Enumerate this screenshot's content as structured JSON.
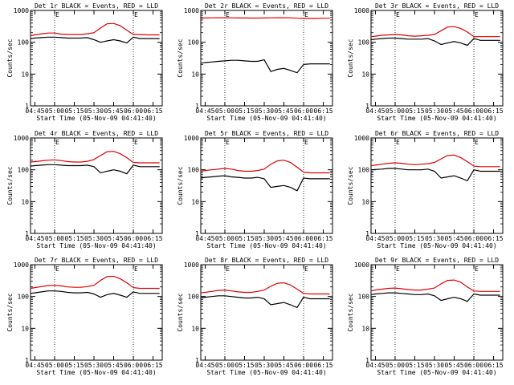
{
  "colors": {
    "events": "#000000",
    "lld": "#e00000",
    "axes": "#000000"
  },
  "common": {
    "xlabel": "Start Time (05-Nov-09 04:41:40)",
    "ylabel": "Counts/sec",
    "xticks": [
      "04:45",
      "05:00",
      "05:15",
      "05:30",
      "05:45",
      "06:00",
      "06:15"
    ],
    "yticks": [
      "1",
      "10",
      "100",
      "1000"
    ],
    "marker_label": "E",
    "markers": [
      "05:00",
      "06:00"
    ]
  },
  "chart_data": [
    {
      "type": "line",
      "title": "Det 1r BLACK = Events, RED = LLD",
      "yscale": "log",
      "ylim": [
        1,
        1000
      ],
      "xlim": [
        "04:41:40",
        "06:22"
      ],
      "grid": false,
      "x": [
        "04:41",
        "04:45",
        "04:50",
        "04:55",
        "05:00",
        "05:05",
        "05:10",
        "05:15",
        "05:20",
        "05:25",
        "05:30",
        "05:35",
        "05:40",
        "05:45",
        "05:50",
        "05:55",
        "06:00",
        "06:05",
        "06:10",
        "06:15",
        "06:20"
      ],
      "series": [
        {
          "name": "LLD",
          "values": [
            160,
            170,
            185,
            195,
            195,
            180,
            175,
            175,
            175,
            185,
            200,
            280,
            380,
            390,
            330,
            240,
            175,
            175,
            170,
            170,
            170
          ]
        },
        {
          "name": "Events",
          "values": [
            130,
            135,
            140,
            145,
            145,
            140,
            135,
            135,
            135,
            140,
            120,
            100,
            110,
            120,
            110,
            95,
            145,
            130,
            130,
            130,
            130
          ]
        }
      ]
    },
    {
      "type": "line",
      "title": "Det 2r BLACK = Events, RED = LLD",
      "yscale": "log",
      "ylim": [
        1,
        1000
      ],
      "xlim": [
        "04:41:40",
        "06:22"
      ],
      "grid": false,
      "x": [
        "04:41",
        "04:45",
        "04:50",
        "04:55",
        "05:00",
        "05:05",
        "05:10",
        "05:15",
        "05:20",
        "05:25",
        "05:30",
        "05:35",
        "05:40",
        "05:45",
        "05:50",
        "05:55",
        "06:00",
        "06:05",
        "06:10",
        "06:15",
        "06:20"
      ],
      "series": [
        {
          "name": "LLD",
          "values": [
            570,
            580,
            585,
            590,
            590,
            585,
            580,
            580,
            575,
            575,
            580,
            585,
            590,
            590,
            585,
            570,
            560,
            560,
            560,
            570,
            570
          ]
        },
        {
          "name": "Events",
          "values": [
            22,
            23,
            24,
            25,
            26,
            27,
            27,
            26,
            25,
            25,
            28,
            12,
            14,
            15,
            13,
            11,
            20,
            21,
            21,
            21,
            21
          ]
        }
      ]
    },
    {
      "type": "line",
      "title": "Det 3r BLACK = Events, RED = LLD",
      "yscale": "log",
      "ylim": [
        1,
        1000
      ],
      "xlim": [
        "04:41:40",
        "06:22"
      ],
      "grid": false,
      "x": [
        "04:41",
        "04:45",
        "04:50",
        "04:55",
        "05:00",
        "05:05",
        "05:10",
        "05:15",
        "05:20",
        "05:25",
        "05:30",
        "05:35",
        "05:40",
        "05:45",
        "05:50",
        "05:55",
        "06:00",
        "06:05",
        "06:10",
        "06:15",
        "06:20"
      ],
      "series": [
        {
          "name": "LLD",
          "values": [
            150,
            155,
            165,
            170,
            175,
            170,
            160,
            155,
            160,
            165,
            175,
            230,
            300,
            310,
            270,
            210,
            150,
            150,
            150,
            150,
            150
          ]
        },
        {
          "name": "Events",
          "values": [
            120,
            125,
            130,
            135,
            135,
            130,
            125,
            125,
            125,
            130,
            110,
            85,
            95,
            105,
            95,
            80,
            130,
            115,
            115,
            115,
            115
          ]
        }
      ]
    },
    {
      "type": "line",
      "title": "Det 4r BLACK = Events, RED = LLD",
      "yscale": "log",
      "ylim": [
        1,
        1000
      ],
      "xlim": [
        "04:41:40",
        "06:22"
      ],
      "grid": false,
      "x": [
        "04:41",
        "04:45",
        "04:50",
        "04:55",
        "05:00",
        "05:05",
        "05:10",
        "05:15",
        "05:20",
        "05:25",
        "05:30",
        "05:35",
        "05:40",
        "05:45",
        "05:50",
        "05:55",
        "06:00",
        "06:05",
        "06:10",
        "06:15",
        "06:20"
      ],
      "series": [
        {
          "name": "LLD",
          "values": [
            175,
            180,
            190,
            200,
            205,
            195,
            180,
            175,
            175,
            185,
            210,
            280,
            370,
            380,
            320,
            240,
            170,
            165,
            165,
            165,
            165
          ]
        },
        {
          "name": "Events",
          "values": [
            130,
            135,
            140,
            145,
            145,
            140,
            135,
            135,
            135,
            140,
            125,
            80,
            90,
            100,
            90,
            75,
            140,
            125,
            125,
            125,
            125
          ]
        }
      ]
    },
    {
      "type": "line",
      "title": "Det 5r BLACK = Events, RED = LLD",
      "yscale": "log",
      "ylim": [
        1,
        1000
      ],
      "xlim": [
        "04:41:40",
        "06:22"
      ],
      "grid": false,
      "x": [
        "04:41",
        "04:45",
        "04:50",
        "04:55",
        "05:00",
        "05:05",
        "05:10",
        "05:15",
        "05:20",
        "05:25",
        "05:30",
        "05:35",
        "05:40",
        "05:45",
        "05:50",
        "05:55",
        "06:00",
        "06:05",
        "06:10",
        "06:15",
        "06:20"
      ],
      "series": [
        {
          "name": "LLD",
          "values": [
            90,
            95,
            100,
            105,
            110,
            105,
            95,
            90,
            90,
            95,
            105,
            150,
            190,
            200,
            170,
            120,
            85,
            80,
            80,
            80,
            80
          ]
        },
        {
          "name": "Events",
          "values": [
            55,
            58,
            60,
            63,
            65,
            60,
            58,
            55,
            55,
            58,
            52,
            28,
            30,
            32,
            28,
            22,
            55,
            52,
            52,
            52,
            52
          ]
        }
      ]
    },
    {
      "type": "line",
      "title": "Det 6r BLACK = Events, RED = LLD",
      "yscale": "log",
      "ylim": [
        1,
        1000
      ],
      "xlim": [
        "04:41:40",
        "06:22"
      ],
      "grid": false,
      "x": [
        "04:41",
        "04:45",
        "04:50",
        "04:55",
        "05:00",
        "05:05",
        "05:10",
        "05:15",
        "05:20",
        "05:25",
        "05:30",
        "05:35",
        "05:40",
        "05:45",
        "05:50",
        "05:55",
        "06:00",
        "06:05",
        "06:10",
        "06:15",
        "06:20"
      ],
      "series": [
        {
          "name": "LLD",
          "values": [
            135,
            140,
            150,
            160,
            165,
            160,
            150,
            145,
            150,
            155,
            170,
            220,
            280,
            290,
            240,
            180,
            130,
            125,
            125,
            125,
            125
          ]
        },
        {
          "name": "Events",
          "values": [
            100,
            102,
            105,
            110,
            110,
            105,
            100,
            100,
            100,
            105,
            90,
            55,
            60,
            65,
            55,
            45,
            100,
            90,
            90,
            90,
            90
          ]
        }
      ]
    },
    {
      "type": "line",
      "title": "Det 7r BLACK = Events, RED = LLD",
      "yscale": "log",
      "ylim": [
        1,
        1000
      ],
      "xlim": [
        "04:41:40",
        "06:22"
      ],
      "grid": false,
      "x": [
        "04:41",
        "04:45",
        "04:50",
        "04:55",
        "05:00",
        "05:05",
        "05:10",
        "05:15",
        "05:20",
        "05:25",
        "05:30",
        "05:35",
        "05:40",
        "05:45",
        "05:50",
        "05:55",
        "06:00",
        "06:05",
        "06:10",
        "06:15",
        "06:20"
      ],
      "series": [
        {
          "name": "LLD",
          "values": [
            180,
            190,
            205,
            220,
            225,
            215,
            200,
            195,
            195,
            205,
            225,
            320,
            420,
            430,
            360,
            270,
            190,
            180,
            180,
            180,
            180
          ]
        },
        {
          "name": "Events",
          "values": [
            125,
            130,
            140,
            150,
            150,
            145,
            135,
            130,
            130,
            135,
            120,
            95,
            115,
            125,
            110,
            95,
            140,
            125,
            125,
            125,
            125
          ]
        }
      ]
    },
    {
      "type": "line",
      "title": "Det 8r BLACK = Events, RED = LLD",
      "yscale": "log",
      "ylim": [
        1,
        1000
      ],
      "xlim": [
        "04:41:40",
        "06:22"
      ],
      "grid": false,
      "x": [
        "04:41",
        "04:45",
        "04:50",
        "04:55",
        "05:00",
        "05:05",
        "05:10",
        "05:15",
        "05:20",
        "05:25",
        "05:30",
        "05:35",
        "05:40",
        "05:45",
        "05:50",
        "05:55",
        "06:00",
        "06:05",
        "06:10",
        "06:15",
        "06:20"
      ],
      "series": [
        {
          "name": "LLD",
          "values": [
            130,
            135,
            145,
            155,
            160,
            150,
            140,
            135,
            135,
            145,
            160,
            210,
            260,
            270,
            230,
            170,
            125,
            120,
            120,
            120,
            120
          ]
        },
        {
          "name": "Events",
          "values": [
            90,
            95,
            100,
            105,
            105,
            100,
            95,
            90,
            90,
            95,
            85,
            55,
            60,
            65,
            55,
            45,
            95,
            85,
            85,
            85,
            85
          ]
        }
      ]
    },
    {
      "type": "line",
      "title": "Det 9r BLACK = Events, RED = LLD",
      "yscale": "log",
      "ylim": [
        1,
        1000
      ],
      "xlim": [
        "04:41:40",
        "06:22"
      ],
      "grid": false,
      "x": [
        "04:41",
        "04:45",
        "04:50",
        "04:55",
        "05:00",
        "05:05",
        "05:10",
        "05:15",
        "05:20",
        "05:25",
        "05:30",
        "05:35",
        "05:40",
        "05:45",
        "05:50",
        "05:55",
        "06:00",
        "06:05",
        "06:10",
        "06:15",
        "06:20"
      ],
      "series": [
        {
          "name": "LLD",
          "values": [
            150,
            160,
            170,
            180,
            185,
            175,
            165,
            160,
            160,
            170,
            185,
            250,
            320,
            330,
            280,
            200,
            150,
            145,
            145,
            145,
            145
          ]
        },
        {
          "name": "Events",
          "values": [
            115,
            120,
            125,
            130,
            130,
            125,
            120,
            115,
            115,
            120,
            105,
            75,
            85,
            95,
            85,
            70,
            120,
            110,
            110,
            110,
            110
          ]
        }
      ]
    }
  ]
}
